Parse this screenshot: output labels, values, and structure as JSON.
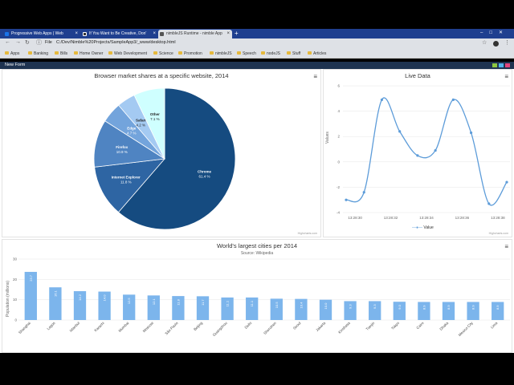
{
  "browser": {
    "tabs": [
      {
        "label": "Progressive Web Apps | Web",
        "color": "#1a73e8"
      },
      {
        "label": "If You Want to Be Creative, Don'",
        "color": "#222"
      },
      {
        "label": "nimbleJS Runtime - nimble App",
        "color": "#3a3a3a"
      }
    ],
    "new_tab": "+",
    "url_label": "File",
    "url": "C:/Dev/Nimble%20Projects/SampleApp3/_www/desktop.html",
    "bookmarks": [
      "Apps",
      "Banking",
      "Bills",
      "Home Owner",
      "Web Development",
      "Science",
      "Promotion",
      "nimbleJS",
      "Speech",
      "nodeJS",
      "Stuff",
      "Articles"
    ]
  },
  "app": {
    "title": "New Form",
    "square_colors": [
      "#8dc63f",
      "#4fb2e8",
      "#e0457b"
    ]
  },
  "pie": {
    "title": "Browser market shares at a specific website, 2014",
    "credits": "Highcharts.com",
    "menu_icon": "≡"
  },
  "live": {
    "title": "Live Data",
    "ylabel": "Values",
    "legend": "Value",
    "credits": "Highcharts.com",
    "menu_icon": "≡"
  },
  "cities": {
    "title": "World's largest cities per 2014",
    "subtitle": "Source: Wikipedia",
    "ylabel": "Population (millions)",
    "credits": "Highcharts.com",
    "menu_icon": "≡"
  },
  "chart_data": [
    {
      "type": "pie",
      "title": "Browser market shares at a specific website, 2014",
      "slices": [
        {
          "name": "Chrome",
          "value": 61.4,
          "label": "61.4 %",
          "color": "#154b80"
        },
        {
          "name": "Internet Explorer",
          "value": 11.8,
          "label": "11.8 %",
          "color": "#2e65a3"
        },
        {
          "name": "Firefox",
          "value": 10.9,
          "label": "10.9 %",
          "color": "#4f84c2"
        },
        {
          "name": "Edge",
          "value": 4.7,
          "label": "4.7 %",
          "color": "#73a4dc"
        },
        {
          "name": "Safari",
          "value": 4.2,
          "label": "4.2 %",
          "color": "#a4caf2"
        },
        {
          "name": "Other",
          "value": 7.1,
          "label": "7.1 %",
          "color": "#cfffff"
        }
      ]
    },
    {
      "type": "line",
      "title": "Live Data",
      "ylabel": "Values",
      "x_ticks": [
        "13:28:30",
        "13:28:32",
        "13:28:34",
        "13:28:36",
        "13:28:38"
      ],
      "y_ticks": [
        -4,
        -2,
        0,
        2,
        4,
        6
      ],
      "ylim": [
        -4,
        6
      ],
      "values": [
        -3.0,
        -2.4,
        4.9,
        2.4,
        0.5,
        0.9,
        4.9,
        2.3,
        -3.3,
        -1.6
      ],
      "color": "#5d9cd9"
    },
    {
      "type": "bar",
      "title": "World's largest cities per 2014",
      "subtitle": "Source: Wikipedia",
      "ylabel": "Population (millions)",
      "ylim": [
        0,
        30
      ],
      "y_ticks": [
        0,
        10,
        20,
        30
      ],
      "categories": [
        "Shanghai",
        "Lagos",
        "Istanbul",
        "Karachi",
        "Mumbai",
        "Moscow",
        "São Paulo",
        "Beijing",
        "Guangzhou",
        "Delhi",
        "Shenzhen",
        "Seoul",
        "Jakarta",
        "Kinshasa",
        "Tianjin",
        "Tokyo",
        "Cairo",
        "Dhaka",
        "Mexico City",
        "Lima"
      ],
      "values": [
        23.7,
        16.1,
        14.2,
        14.0,
        12.5,
        12.1,
        11.8,
        11.7,
        11.1,
        11.1,
        10.5,
        10.4,
        10.0,
        9.3,
        9.3,
        9.0,
        8.9,
        8.9,
        8.9,
        8.9
      ],
      "labels": [
        "23.7",
        "16.1",
        "14.2",
        "14.0",
        "12.5",
        "12.1",
        "11.8",
        "11.7",
        "11.1",
        "11.1",
        "10.5",
        "10.4",
        "10.0",
        "9.3",
        "9.3",
        "9.0",
        "8.9",
        "8.9",
        "8.9",
        "8.9"
      ],
      "color": "#7cb5ec"
    }
  ]
}
